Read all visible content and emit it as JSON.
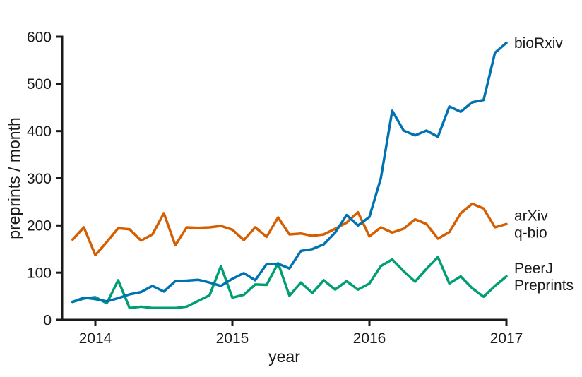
{
  "chart_data": {
    "type": "line",
    "title": "",
    "xlabel": "year",
    "ylabel": "preprints / month",
    "ylim": [
      0,
      600
    ],
    "y_ticks": [
      0,
      100,
      200,
      300,
      400,
      500,
      600
    ],
    "x_ticks": [
      "2014",
      "2015",
      "2016",
      "2017"
    ],
    "grid": false,
    "legend_position": "right-end-of-line-labels",
    "axis_color": "#1a1a1a",
    "months": [
      "2013-11",
      "2013-12",
      "2014-01",
      "2014-02",
      "2014-03",
      "2014-04",
      "2014-05",
      "2014-06",
      "2014-07",
      "2014-08",
      "2014-09",
      "2014-10",
      "2014-11",
      "2014-12",
      "2015-01",
      "2015-02",
      "2015-03",
      "2015-04",
      "2015-05",
      "2015-06",
      "2015-07",
      "2015-08",
      "2015-09",
      "2015-10",
      "2015-11",
      "2015-12",
      "2016-01",
      "2016-02",
      "2016-03",
      "2016-04",
      "2016-05",
      "2016-06",
      "2016-07",
      "2016-08",
      "2016-09",
      "2016-10",
      "2016-11",
      "2016-12",
      "2017-01"
    ],
    "series": [
      {
        "name": "arXiv q-bio",
        "label_lines": [
          "arXiv",
          "q-bio"
        ],
        "color": "#D55E00",
        "values": [
          170,
          196,
          137,
          165,
          194,
          192,
          168,
          181,
          226,
          158,
          196,
          195,
          196,
          199,
          191,
          169,
          196,
          176,
          217,
          181,
          183,
          178,
          181,
          193,
          206,
          228,
          177,
          196,
          185,
          193,
          213,
          203,
          172,
          186,
          226,
          246,
          236,
          196,
          203
        ]
      },
      {
        "name": "PeerJ Preprints",
        "label_lines": [
          "PeerJ",
          "Preprints"
        ],
        "color": "#009E73",
        "values": [
          38,
          45,
          48,
          35,
          84,
          25,
          28,
          25,
          25,
          25,
          28,
          40,
          52,
          114,
          47,
          53,
          75,
          74,
          120,
          51,
          79,
          57,
          84,
          64,
          82,
          64,
          77,
          114,
          128,
          103,
          81,
          108,
          133,
          77,
          92,
          67,
          49,
          72,
          92
        ]
      },
      {
        "name": "bioRxiv",
        "label_lines": [
          "bioRxiv"
        ],
        "color": "#0072B2",
        "values": [
          38,
          47,
          44,
          39,
          46,
          54,
          59,
          72,
          60,
          82,
          83,
          85,
          79,
          72,
          87,
          99,
          84,
          118,
          119,
          109,
          146,
          150,
          160,
          185,
          222,
          200,
          218,
          300,
          443,
          401,
          391,
          401,
          388,
          452,
          441,
          461,
          466,
          566,
          587
        ]
      }
    ]
  }
}
